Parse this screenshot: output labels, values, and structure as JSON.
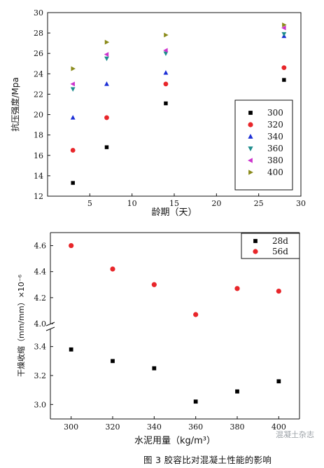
{
  "chart_data": [
    {
      "type": "scatter",
      "title": "",
      "xlabel": "龄期（天）",
      "ylabel": "抗压强度/Mpa",
      "xlim": [
        0,
        30
      ],
      "ylim": [
        12,
        30
      ],
      "x_ticks": [
        "5",
        "10",
        "15",
        "20",
        "25",
        "30"
      ],
      "y_ticks": [
        "12",
        "14",
        "16",
        "18",
        "20",
        "22",
        "24",
        "26",
        "28",
        "30"
      ],
      "legend_position": "lower-right",
      "fit_curves": true,
      "series": [
        {
          "name": "300",
          "marker": "square",
          "color": "#000000",
          "x": [
            3,
            7,
            14,
            28
          ],
          "y": [
            13.3,
            16.8,
            21.1,
            23.4
          ]
        },
        {
          "name": "320",
          "marker": "circle",
          "color": "#e8262a",
          "x": [
            3,
            7,
            14,
            28
          ],
          "y": [
            16.5,
            19.7,
            23.0,
            24.6
          ]
        },
        {
          "name": "340",
          "marker": "triangle-up",
          "color": "#1c2fd6",
          "x": [
            3,
            7,
            14,
            28
          ],
          "y": [
            19.7,
            23.0,
            24.1,
            27.7
          ]
        },
        {
          "name": "360",
          "marker": "triangle-down",
          "color": "#1e8d8d",
          "x": [
            3,
            7,
            14,
            28
          ],
          "y": [
            22.5,
            25.5,
            26.0,
            27.9
          ]
        },
        {
          "name": "380",
          "marker": "triangle-left",
          "color": "#cc33cc",
          "x": [
            3,
            7,
            14,
            28
          ],
          "y": [
            23.0,
            25.9,
            26.3,
            28.5
          ]
        },
        {
          "name": "400",
          "marker": "triangle-right",
          "color": "#8a8a1a",
          "x": [
            3,
            7,
            14,
            28
          ],
          "y": [
            24.5,
            27.1,
            27.8,
            28.8
          ]
        }
      ]
    },
    {
      "type": "scatter",
      "title": "",
      "xlabel": "水泥用量（kg/m³）",
      "ylabel": "干燥收缩（mm/mm）×10⁻⁶",
      "xlim": [
        290,
        410
      ],
      "ylim": [
        2.9,
        4.7
      ],
      "axis_break": [
        3.5,
        4.0
      ],
      "x_ticks": [
        "300",
        "320",
        "340",
        "360",
        "380",
        "400"
      ],
      "y_ticks": [
        "3.0",
        "3.2",
        "3.4",
        "4.0",
        "4.2",
        "4.4",
        "4.6"
      ],
      "legend_position": "top-right",
      "fit_curves": true,
      "series": [
        {
          "name": "28d",
          "marker": "square",
          "color": "#000000",
          "x": [
            300,
            320,
            340,
            360,
            380,
            400
          ],
          "y": [
            3.38,
            3.3,
            3.25,
            3.02,
            3.09,
            3.16
          ]
        },
        {
          "name": "56d",
          "marker": "circle",
          "color": "#e8262a",
          "x": [
            300,
            320,
            340,
            360,
            380,
            400
          ],
          "y": [
            4.6,
            4.42,
            4.3,
            4.07,
            4.27,
            4.25
          ]
        }
      ]
    }
  ],
  "caption": "图 3  胶容比对混凝土性能的影响",
  "watermark": "混凝土杂志"
}
